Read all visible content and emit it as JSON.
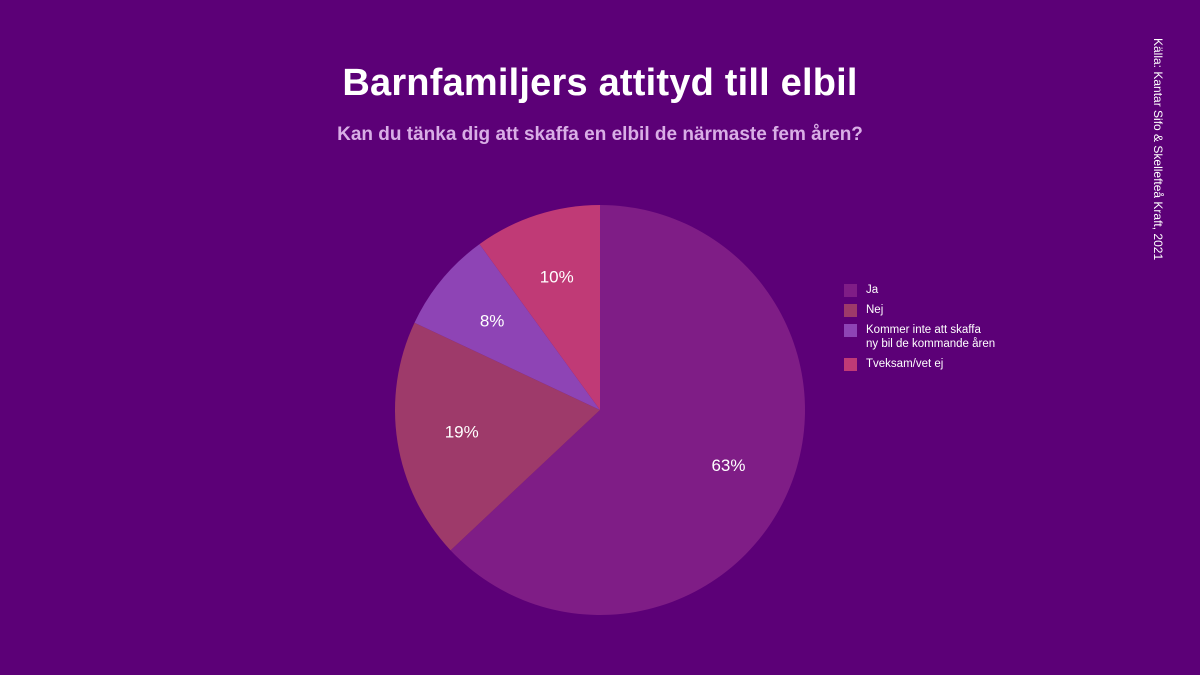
{
  "header": {
    "title": "Barnfamiljers attityd till elbil",
    "subtitle": "Kan du tänka dig att skaffa en elbil de närmaste fem åren?"
  },
  "source": "Källa: Kantar Sifo & Skellefteå Kraft, 2021",
  "chart_data": {
    "type": "pie",
    "title": "Barnfamiljers attityd till elbil",
    "subtitle": "Kan du tänka dig att skaffa en elbil de närmaste fem åren?",
    "legend_position": "right",
    "slices": [
      {
        "label": "Ja",
        "value": 63,
        "display": "63%",
        "color": "#7f1d86"
      },
      {
        "label": "Nej",
        "value": 19,
        "display": "19%",
        "color": "#9e3a6a"
      },
      {
        "label": "Kommer inte att skaffa\nny bil de kommande åren",
        "value": 8,
        "display": "8%",
        "color": "#8e44b5"
      },
      {
        "label": "Tveksam/vet ej",
        "value": 10,
        "display": "10%",
        "color": "#c03a76"
      }
    ]
  }
}
